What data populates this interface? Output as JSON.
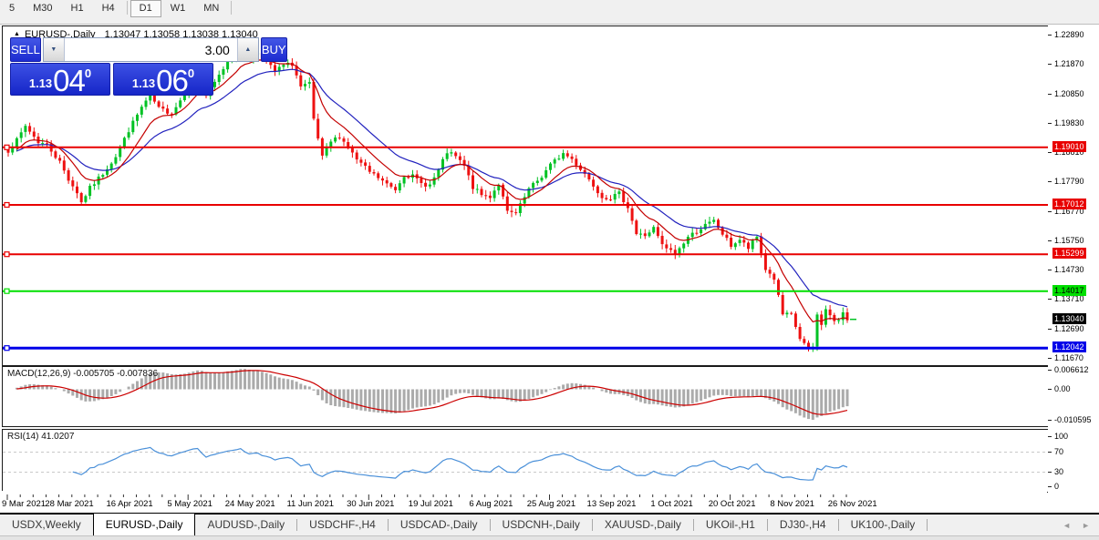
{
  "toolbar": {
    "timeframes": [
      "5",
      "M30",
      "H1",
      "H4",
      "D1",
      "W1",
      "MN"
    ],
    "active_timeframe": "D1"
  },
  "chart_header": {
    "collapse_icon": "▲",
    "symbol": "EURUSD-,Daily",
    "ohlc": "1.13047 1.13058 1.13038 1.13040"
  },
  "trade_panel": {
    "sell_label": "SELL",
    "buy_label": "BUY",
    "volume": "3.00",
    "down_icon": "▼",
    "up_icon": "▲",
    "bid": {
      "prefix": "1.13",
      "big": "04",
      "sup": "0"
    },
    "ask": {
      "prefix": "1.13",
      "big": "06",
      "sup": "0"
    }
  },
  "colors": {
    "bull": "#00C224",
    "bear": "#EE1111",
    "ma_fast": "#C40000",
    "ma_slow": "#2222BE",
    "macd_hist": "#ABABAB",
    "macd_signal": "#CC0000",
    "rsi_line": "#4A90D9",
    "level_red": "#E80000",
    "level_green": "#00DF00",
    "level_blue": "#0000E8",
    "current_badge_bg": "#000000"
  },
  "chart_data": {
    "type": "candlestick",
    "symbol": "EURUSD-",
    "timeframe": "Daily",
    "candle_count": 196,
    "price_range": {
      "top": 1.2289,
      "bottom": 1.1167
    },
    "price_axis_ticks": [
      "1.22890",
      "1.21870",
      "1.20850",
      "1.19830",
      "1.18810",
      "1.17790",
      "1.16770",
      "1.15750",
      "1.14730",
      "1.13710",
      "1.12690",
      "1.11670"
    ],
    "x_labels": [
      "9 Mar 2021",
      "28 Mar 2021",
      "16 Apr 2021",
      "5 May 2021",
      "24 May 2021",
      "11 Jun 2021",
      "30 Jun 2021",
      "19 Jul 2021",
      "6 Aug 2021",
      "25 Aug 2021",
      "13 Sep 2021",
      "1 Oct 2021",
      "20 Oct 2021",
      "8 Nov 2021",
      "26 Nov 2021"
    ],
    "x_label_interval": 14,
    "close_anchors": [
      [
        0,
        1.189
      ],
      [
        2,
        1.1925
      ],
      [
        4,
        1.1975
      ],
      [
        7,
        1.192
      ],
      [
        9,
        1.191
      ],
      [
        12,
        1.185
      ],
      [
        14,
        1.179
      ],
      [
        16,
        1.1745
      ],
      [
        17,
        1.171
      ],
      [
        19,
        1.176
      ],
      [
        22,
        1.181
      ],
      [
        25,
        1.187
      ],
      [
        28,
        1.196
      ],
      [
        31,
        1.204
      ],
      [
        33,
        1.208
      ],
      [
        35,
        1.2035
      ],
      [
        38,
        1.202
      ],
      [
        40,
        1.2065
      ],
      [
        42,
        1.2125
      ],
      [
        44,
        1.216
      ],
      [
        46,
        1.208
      ],
      [
        48,
        1.2125
      ],
      [
        51,
        1.22
      ],
      [
        54,
        1.225
      ],
      [
        56,
        1.2215
      ],
      [
        58,
        1.223
      ],
      [
        60,
        1.2195
      ],
      [
        62,
        1.2165
      ],
      [
        64,
        1.2185
      ],
      [
        66,
        1.219
      ],
      [
        68,
        1.211
      ],
      [
        70,
        1.212
      ],
      [
        71,
        1.1995
      ],
      [
        73,
        1.1865
      ],
      [
        75,
        1.192
      ],
      [
        77,
        1.194
      ],
      [
        79,
        1.19
      ],
      [
        81,
        1.1858
      ],
      [
        84,
        1.1815
      ],
      [
        86,
        1.1795
      ],
      [
        88,
        1.1772
      ],
      [
        90,
        1.1755
      ],
      [
        92,
        1.1806
      ],
      [
        94,
        1.18
      ],
      [
        96,
        1.1775
      ],
      [
        98,
        1.177
      ],
      [
        100,
        1.182
      ],
      [
        102,
        1.1884
      ],
      [
        104,
        1.1868
      ],
      [
        106,
        1.1835
      ],
      [
        108,
        1.1762
      ],
      [
        110,
        1.1735
      ],
      [
        112,
        1.173
      ],
      [
        114,
        1.1775
      ],
      [
        116,
        1.1675
      ],
      [
        118,
        1.167
      ],
      [
        121,
        1.1755
      ],
      [
        124,
        1.18
      ],
      [
        126,
        1.184
      ],
      [
        129,
        1.188
      ],
      [
        131,
        1.186
      ],
      [
        134,
        1.181
      ],
      [
        136,
        1.177
      ],
      [
        138,
        1.173
      ],
      [
        140,
        1.1726
      ],
      [
        142,
        1.174
      ],
      [
        144,
        1.1695
      ],
      [
        146,
        1.16
      ],
      [
        148,
        1.1595
      ],
      [
        150,
        1.162
      ],
      [
        152,
        1.156
      ],
      [
        155,
        1.153
      ],
      [
        158,
        1.159
      ],
      [
        160,
        1.161
      ],
      [
        162,
        1.163
      ],
      [
        164,
        1.1645
      ],
      [
        166,
        1.16
      ],
      [
        168,
        1.156
      ],
      [
        170,
        1.158
      ],
      [
        172,
        1.155
      ],
      [
        174,
        1.159
      ],
      [
        176,
        1.1478
      ],
      [
        178,
        1.1445
      ],
      [
        180,
        1.132
      ],
      [
        182,
        1.1318
      ],
      [
        184,
        1.1237
      ],
      [
        186,
        1.12
      ],
      [
        187,
        1.1208
      ],
      [
        188,
        1.1318
      ],
      [
        189,
        1.129
      ],
      [
        190,
        1.1336
      ],
      [
        191,
        1.132
      ],
      [
        192,
        1.1296
      ],
      [
        193,
        1.1296
      ],
      [
        194,
        1.133
      ],
      [
        195,
        1.1304
      ]
    ],
    "moving_averages": [
      {
        "name": "fast-ma",
        "period": 10
      },
      {
        "name": "slow-ma",
        "period": 21
      }
    ],
    "levels": [
      {
        "price": 1.1901,
        "label": "1.19010",
        "color": "red"
      },
      {
        "price": 1.17012,
        "label": "1.17012",
        "color": "red"
      },
      {
        "price": 1.15299,
        "label": "1.15299",
        "color": "red"
      },
      {
        "price": 1.14017,
        "label": "1.14017",
        "color": "green"
      },
      {
        "price": 1.12042,
        "label": "1.12042",
        "color": "blue"
      }
    ],
    "current_price": {
      "value": 1.1304,
      "label": "1.13040"
    },
    "indicators": [
      {
        "name": "MACD",
        "display": "MACD(12,26,9) -0.005705 -0.007836",
        "fast": 12,
        "slow": 26,
        "signal": 9,
        "scale_labels": [
          "0.006612",
          "0.00",
          "-0.010595"
        ],
        "scale_top": 0.006612,
        "scale_bottom": -0.010595
      },
      {
        "name": "RSI",
        "display": "RSI(14) 41.0207",
        "period": 14,
        "value": 41.0207,
        "scale_labels": [
          "100",
          "70",
          "30",
          "0"
        ],
        "dashed_levels": [
          70,
          30
        ]
      }
    ]
  },
  "tabs": {
    "items": [
      "USDX,Weekly",
      "EURUSD-,Daily",
      "AUDUSD-,Daily",
      "USDCHF-,H4",
      "USDCAD-,Daily",
      "USDCNH-,Daily",
      "XAUUSD-,Daily",
      "UKOil-,H1",
      "DJ30-,H4",
      "UK100-,Daily"
    ],
    "active_index": 1,
    "scroll_left_icon": "◄",
    "scroll_right_icon": "►"
  }
}
